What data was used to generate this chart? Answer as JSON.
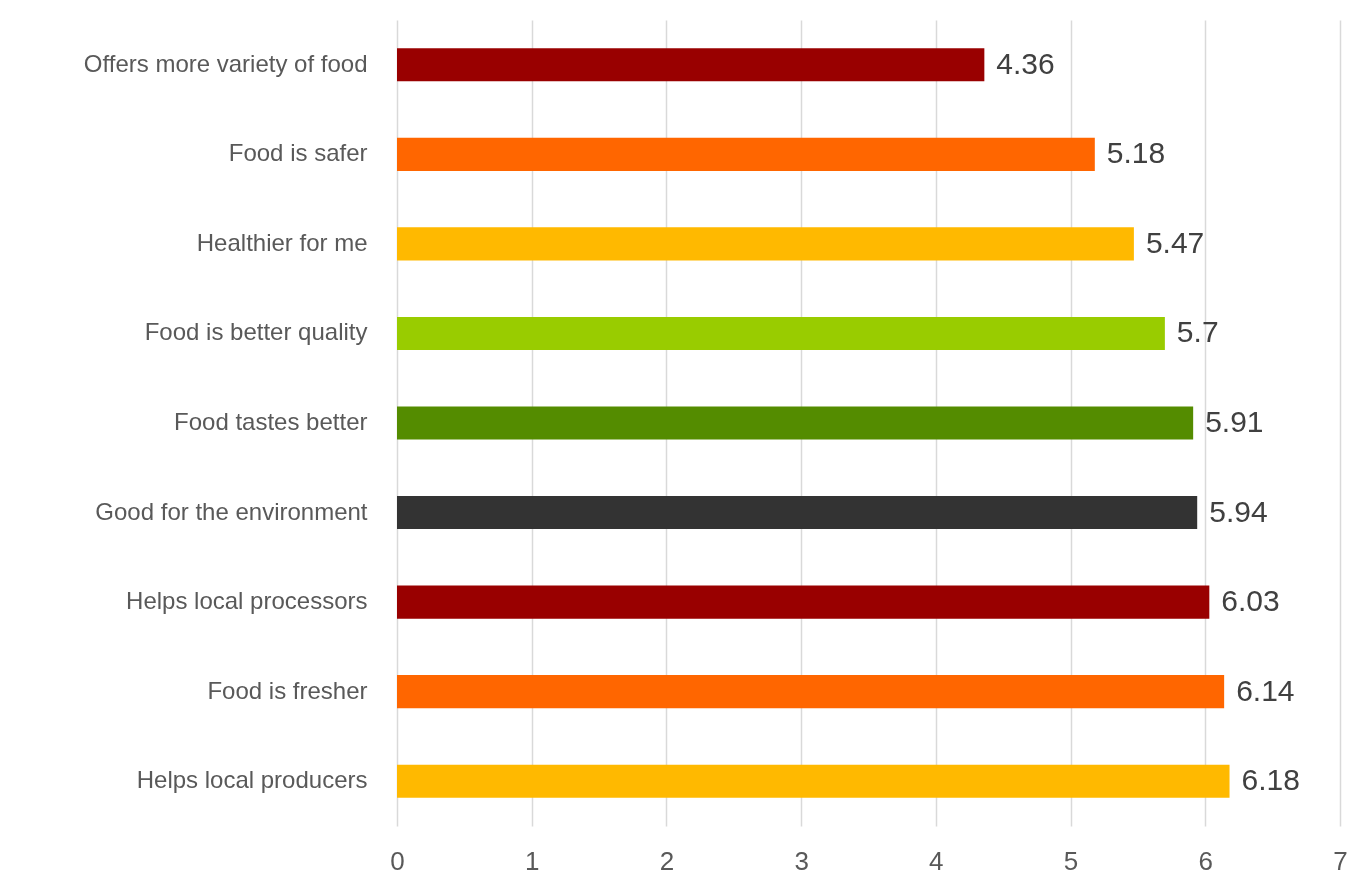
{
  "chart_data": {
    "type": "bar",
    "orientation": "horizontal",
    "categories": [
      "Offers more variety of food",
      "Food is safer",
      "Healthier for me",
      "Food is better quality",
      "Food tastes better",
      "Good for the environment",
      "Helps local processors",
      "Food is fresher",
      "Helps local producers"
    ],
    "values": [
      4.36,
      5.18,
      5.47,
      5.7,
      5.91,
      5.94,
      6.03,
      6.14,
      6.18
    ],
    "colors": [
      "#990000",
      "#ff6600",
      "#ffb900",
      "#99cc00",
      "#548c00",
      "#333333",
      "#990000",
      "#ff6600",
      "#ffb900"
    ],
    "xlim": [
      0,
      7
    ],
    "xticks": [
      0,
      1,
      2,
      3,
      4,
      5,
      6,
      7
    ],
    "grid": "x",
    "data_labels": true
  }
}
